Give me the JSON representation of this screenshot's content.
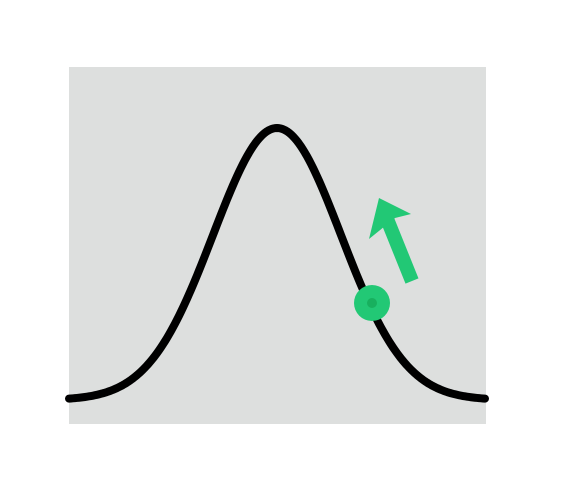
{
  "diagram": {
    "type": "gaussian-curve-with-point",
    "panel_color": "#DDDFDE",
    "curve_color": "#000000",
    "accent_color": "#22C875",
    "accent_dot_color": "#18B05E",
    "arrow_direction": "up-left",
    "marker": "point-on-right-slope"
  }
}
